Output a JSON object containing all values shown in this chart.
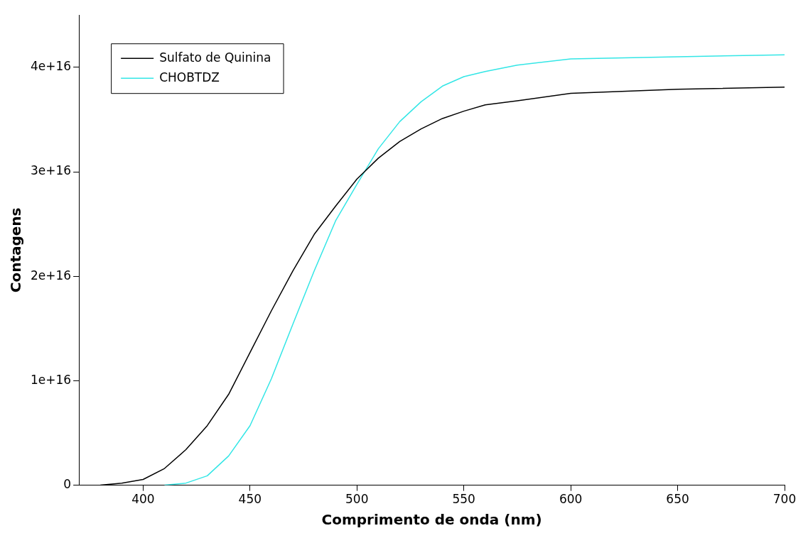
{
  "chart_data": {
    "type": "line",
    "xlabel": "Comprimento de onda (nm)",
    "ylabel": "Contagens",
    "xlim": [
      370,
      700
    ],
    "ylim": [
      0,
      4.5e+16
    ],
    "xticks": [
      400,
      450,
      500,
      550,
      600,
      650,
      700
    ],
    "yticks": [
      {
        "value": 0,
        "label": "0"
      },
      {
        "value": 1e+16,
        "label": "1e+16"
      },
      {
        "value": 2e+16,
        "label": "2e+16"
      },
      {
        "value": 3e+16,
        "label": "3e+16"
      },
      {
        "value": 4e+16,
        "label": "4e+16"
      }
    ],
    "grid": false,
    "legend": "top left",
    "marker": "none",
    "line_style": "solid",
    "series": [
      {
        "name": "Sulfato de Quinina",
        "color": "#000000",
        "x": [
          380,
          390,
          400,
          410,
          420,
          430,
          440,
          450,
          460,
          470,
          480,
          490,
          500,
          510,
          520,
          530,
          540,
          550,
          560,
          575,
          600,
          650,
          700
        ],
        "values": [
          0,
          200000000000000.0,
          550000000000000.0,
          1600000000000000.0,
          3400000000000000.0,
          5700000000000000.0,
          8700000000000000.0,
          1.27e+16,
          1.67e+16,
          2.05e+16,
          2.4e+16,
          2.67e+16,
          2.93e+16,
          3.13e+16,
          3.29e+16,
          3.41e+16,
          3.51e+16,
          3.58e+16,
          3.64e+16,
          3.68e+16,
          3.75e+16,
          3.79e+16,
          3.81e+16
        ]
      },
      {
        "name": "CHOBTDZ",
        "color": "#33e6e6",
        "x": [
          410,
          420,
          430,
          440,
          450,
          460,
          470,
          480,
          490,
          500,
          510,
          520,
          530,
          540,
          550,
          560,
          575,
          600,
          650,
          700
        ],
        "values": [
          0,
          200000000000000.0,
          900000000000000.0,
          2800000000000000.0,
          5700000000000000.0,
          1.02e+16,
          1.54e+16,
          2.05e+16,
          2.53e+16,
          2.88e+16,
          3.22e+16,
          3.48e+16,
          3.67e+16,
          3.82e+16,
          3.91e+16,
          3.96e+16,
          4.02e+16,
          4.08e+16,
          4.1e+16,
          4.12e+16
        ]
      }
    ]
  }
}
